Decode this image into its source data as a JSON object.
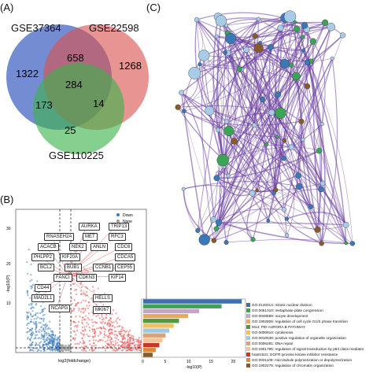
{
  "panels": {
    "a_letter": "(A)",
    "b_letter": "(B)",
    "c_letter": "(C)"
  },
  "venn": {
    "sets": [
      "GSE37364",
      "GSE22598",
      "GSE110225"
    ],
    "colors": {
      "GSE37364": "#3f5fbf",
      "GSE22598": "#d9534f",
      "GSE110225": "#3cb34a"
    },
    "regions": {
      "only_1": "1322",
      "only_2": "1268",
      "only_3": "25",
      "one_two": "658",
      "one_three": "173",
      "two_three": "14",
      "all": "284"
    }
  },
  "volcano": {
    "xlabel": "log2(foldchange)",
    "ylabel": "-log10(P)",
    "legend": [
      "Down",
      "None",
      "Up"
    ],
    "colors": {
      "down": "#3b7bbf",
      "none": "#999999",
      "up": "#e25656"
    },
    "genes": [
      "AURKA",
      "TRIP13",
      "RNASEH2A",
      "MET",
      "RFC3",
      "ACACB",
      "NEK2",
      "ANLN",
      "CDC6",
      "PHLPP2",
      "KIF20A",
      "CDCA5",
      "BCL2",
      "BUB1",
      "CCNB1",
      "CEP55",
      "FANCI",
      "CDKN3",
      "KIF14",
      "CD44",
      "MAD2L1",
      "HELLS",
      "NCAPG",
      "MKI67"
    ],
    "y_ticks": [
      "30",
      "20",
      "10"
    ]
  },
  "enrichment": {
    "xlabel": "-log10(P)",
    "x_ticks": [
      "0",
      "5",
      "10",
      "15",
      "20"
    ],
    "terms": [
      {
        "label": "GO:0140014: mitotic nuclear division",
        "value": 22,
        "color": "#3b6fb6"
      },
      {
        "label": "GO:0051310: metaphase plate congression",
        "value": 17.5,
        "color": "#3aa655"
      },
      {
        "label": "GO:0048599: oocyte development",
        "value": 12.5,
        "color": "#c8a2c8"
      },
      {
        "label": "GO:1902806: regulation of cell cycle G1/S phase transition",
        "value": 10,
        "color": "#e8a85c"
      },
      {
        "label": "M14: PID AURORA B PATHWAY",
        "value": 8,
        "color": "#4f9a3e"
      },
      {
        "label": "GO:0000910: cytokinesis",
        "value": 6.8,
        "color": "#f0c060"
      },
      {
        "label": "GO:0010638: positive regulation of organelle organization",
        "value": 5.8,
        "color": "#9ecae1"
      },
      {
        "label": "GO:0006281: DNA repair",
        "value": 5,
        "color": "#d9a27a"
      },
      {
        "label": "GO:1901796: regulation of signal transduction by p53 class mediator",
        "value": 4.3,
        "color": "#f2c49b"
      },
      {
        "label": "hsa01521: EGFR tyrosine kinase inhibitor resistance",
        "value": 3.6,
        "color": "#c0392b"
      },
      {
        "label": "GO:0031109: microtubule polymerization or depolymerization",
        "value": 2.8,
        "color": "#d98b3a"
      },
      {
        "label": "GO:1902275: regulation of chromatin organization",
        "value": 2.1,
        "color": "#8a5a2b"
      }
    ]
  },
  "network": {
    "edge_color": "#6b3fa0",
    "node_colors": [
      "#a8cbe8",
      "#3a78b8",
      "#3aa655",
      "#8a5a2b"
    ]
  }
}
